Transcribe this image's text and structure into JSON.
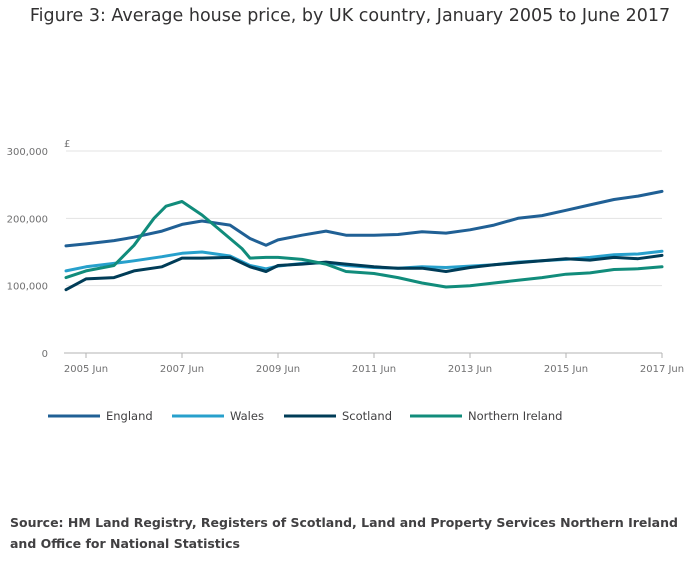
{
  "title": "Figure 3: Average house price, by UK country, January 2005 to June 2017",
  "source": "Source: HM Land Registry, Registers of Scotland, Land and Property Services Northern Ireland and Office for National Statistics",
  "chart_data": {
    "type": "line",
    "ylabel": "£",
    "ylim": [
      0,
      300000
    ],
    "yticks": [
      0,
      100000,
      200000,
      300000
    ],
    "ytick_labels": [
      "0",
      "100,000",
      "200,000",
      "300,000"
    ],
    "xlim": [
      "2005-01",
      "2017-06"
    ],
    "xtick_labels": [
      "2005 Jun",
      "2007 Jun",
      "2009 Jun",
      "2011 Jun",
      "2013 Jun",
      "2015 Jun",
      "2017 Jun"
    ],
    "xtick_dates": [
      "2005-06",
      "2007-06",
      "2009-06",
      "2011-06",
      "2013-06",
      "2015-06",
      "2017-06"
    ],
    "grid": "horizontal",
    "legend": "bottom",
    "series": [
      {
        "name": "England",
        "color": "#206095",
        "x": [
          "2005-01",
          "2005-06",
          "2006-01",
          "2006-06",
          "2007-01",
          "2007-06",
          "2007-11",
          "2008-06",
          "2008-11",
          "2009-03",
          "2009-06",
          "2009-12",
          "2010-06",
          "2010-11",
          "2011-06",
          "2011-12",
          "2012-06",
          "2012-12",
          "2013-06",
          "2013-12",
          "2014-06",
          "2014-12",
          "2015-06",
          "2015-12",
          "2016-06",
          "2016-12",
          "2017-06"
        ],
        "values": [
          159000,
          162000,
          167000,
          172000,
          181000,
          191000,
          196000,
          190000,
          170000,
          160000,
          168000,
          175000,
          181000,
          175000,
          175000,
          176000,
          180000,
          178000,
          183000,
          190000,
          200000,
          204000,
          212000,
          220000,
          228000,
          233000,
          240000
        ]
      },
      {
        "name": "Wales",
        "color": "#27a0cc",
        "x": [
          "2005-01",
          "2005-06",
          "2006-01",
          "2006-06",
          "2007-01",
          "2007-06",
          "2007-11",
          "2008-06",
          "2008-11",
          "2009-03",
          "2009-06",
          "2009-12",
          "2010-06",
          "2010-11",
          "2011-06",
          "2011-12",
          "2012-06",
          "2012-12",
          "2013-06",
          "2013-12",
          "2014-06",
          "2014-12",
          "2015-06",
          "2015-12",
          "2016-06",
          "2016-12",
          "2017-06"
        ],
        "values": [
          122000,
          128000,
          133000,
          137000,
          143000,
          148000,
          150000,
          144000,
          130000,
          125000,
          129000,
          133000,
          134000,
          130000,
          127000,
          126000,
          128000,
          127000,
          129000,
          131000,
          135000,
          137000,
          139000,
          142000,
          146000,
          147000,
          151000
        ]
      },
      {
        "name": "Scotland",
        "color": "#003c57",
        "x": [
          "2005-01",
          "2005-06",
          "2006-01",
          "2006-06",
          "2007-01",
          "2007-06",
          "2007-11",
          "2008-06",
          "2008-11",
          "2009-03",
          "2009-06",
          "2009-12",
          "2010-06",
          "2010-11",
          "2011-06",
          "2011-12",
          "2012-06",
          "2012-12",
          "2013-06",
          "2013-12",
          "2014-06",
          "2014-12",
          "2015-06",
          "2015-12",
          "2016-06",
          "2016-12",
          "2017-06"
        ],
        "values": [
          94000,
          110000,
          112000,
          122000,
          128000,
          141000,
          141000,
          142000,
          128000,
          121000,
          130000,
          132000,
          135000,
          132000,
          128000,
          126000,
          126000,
          121000,
          127000,
          131000,
          134000,
          137000,
          140000,
          138000,
          142000,
          140000,
          145000
        ]
      },
      {
        "name": "Northern Ireland",
        "color": "#118c7b",
        "x": [
          "2005-01",
          "2005-06",
          "2006-01",
          "2006-06",
          "2006-11",
          "2007-02",
          "2007-06",
          "2007-11",
          "2008-03",
          "2008-06",
          "2008-09",
          "2008-11",
          "2009-03",
          "2009-06",
          "2009-12",
          "2010-06",
          "2010-11",
          "2011-06",
          "2011-12",
          "2012-06",
          "2012-12",
          "2013-06",
          "2013-12",
          "2014-06",
          "2014-12",
          "2015-06",
          "2015-12",
          "2016-06",
          "2016-12",
          "2017-06"
        ],
        "values": [
          112000,
          122000,
          130000,
          160000,
          200000,
          218000,
          225000,
          205000,
          185000,
          170000,
          155000,
          141000,
          142000,
          142000,
          139000,
          132000,
          121000,
          118000,
          112000,
          104000,
          98000,
          100000,
          104000,
          108000,
          112000,
          117000,
          119000,
          124000,
          125000,
          128000
        ]
      }
    ]
  }
}
